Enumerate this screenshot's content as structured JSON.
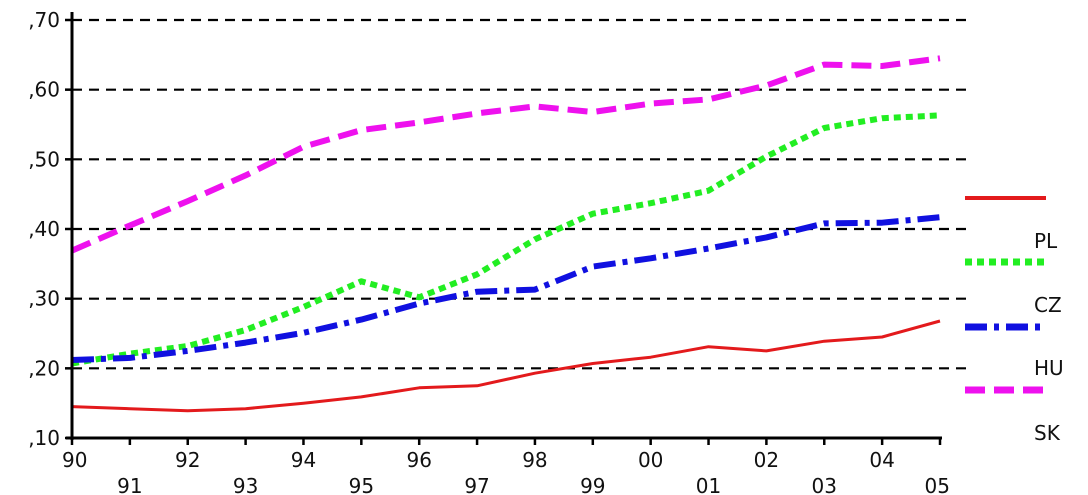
{
  "chart_data": {
    "type": "line",
    "title": "",
    "xlabel": "",
    "ylabel": "",
    "x": [
      1990,
      1991,
      1992,
      1993,
      1994,
      1995,
      1996,
      1997,
      1998,
      1999,
      2000,
      2001,
      2002,
      2003,
      2004,
      2005
    ],
    "x_tick_labels": [
      "90",
      "91",
      "92",
      "93",
      "94",
      "95",
      "96",
      "97",
      "98",
      "99",
      "00",
      "01",
      "02",
      "03",
      "04",
      "05"
    ],
    "y_tick_labels": [
      ",10",
      ",20",
      ",30",
      ",40",
      ",50",
      ",60",
      ",70"
    ],
    "y_ticks": [
      0.1,
      0.2,
      0.3,
      0.4,
      0.5,
      0.6,
      0.7
    ],
    "ylim": [
      0.1,
      0.7
    ],
    "xlim": [
      1990,
      2005
    ],
    "grid": "horizontal dashed",
    "legend_position": "right",
    "series": [
      {
        "name": "PL",
        "color": "#e31a1c",
        "style": "solid",
        "values": [
          0.145,
          0.142,
          0.139,
          0.142,
          0.15,
          0.159,
          0.172,
          0.175,
          0.193,
          0.207,
          0.216,
          0.231,
          0.225,
          0.239,
          0.245,
          0.268
        ]
      },
      {
        "name": "CZ",
        "color": "#22ee22",
        "style": "dotted",
        "values": [
          0.207,
          0.221,
          0.232,
          0.255,
          0.288,
          0.325,
          0.302,
          0.335,
          0.385,
          0.422,
          0.437,
          0.455,
          0.504,
          0.545,
          0.559,
          0.563
        ]
      },
      {
        "name": "HU",
        "color": "#1010e0",
        "style": "dashdot",
        "values": [
          0.212,
          0.215,
          0.225,
          0.237,
          0.251,
          0.27,
          0.293,
          0.31,
          0.313,
          0.346,
          0.358,
          0.372,
          0.388,
          0.408,
          0.409,
          0.417
        ]
      },
      {
        "name": "SK",
        "color": "#ee11ee",
        "style": "dashed",
        "values": [
          0.369,
          0.405,
          0.44,
          0.477,
          0.518,
          0.542,
          0.553,
          0.566,
          0.576,
          0.568,
          0.58,
          0.586,
          0.606,
          0.636,
          0.634,
          0.645
        ]
      }
    ]
  }
}
